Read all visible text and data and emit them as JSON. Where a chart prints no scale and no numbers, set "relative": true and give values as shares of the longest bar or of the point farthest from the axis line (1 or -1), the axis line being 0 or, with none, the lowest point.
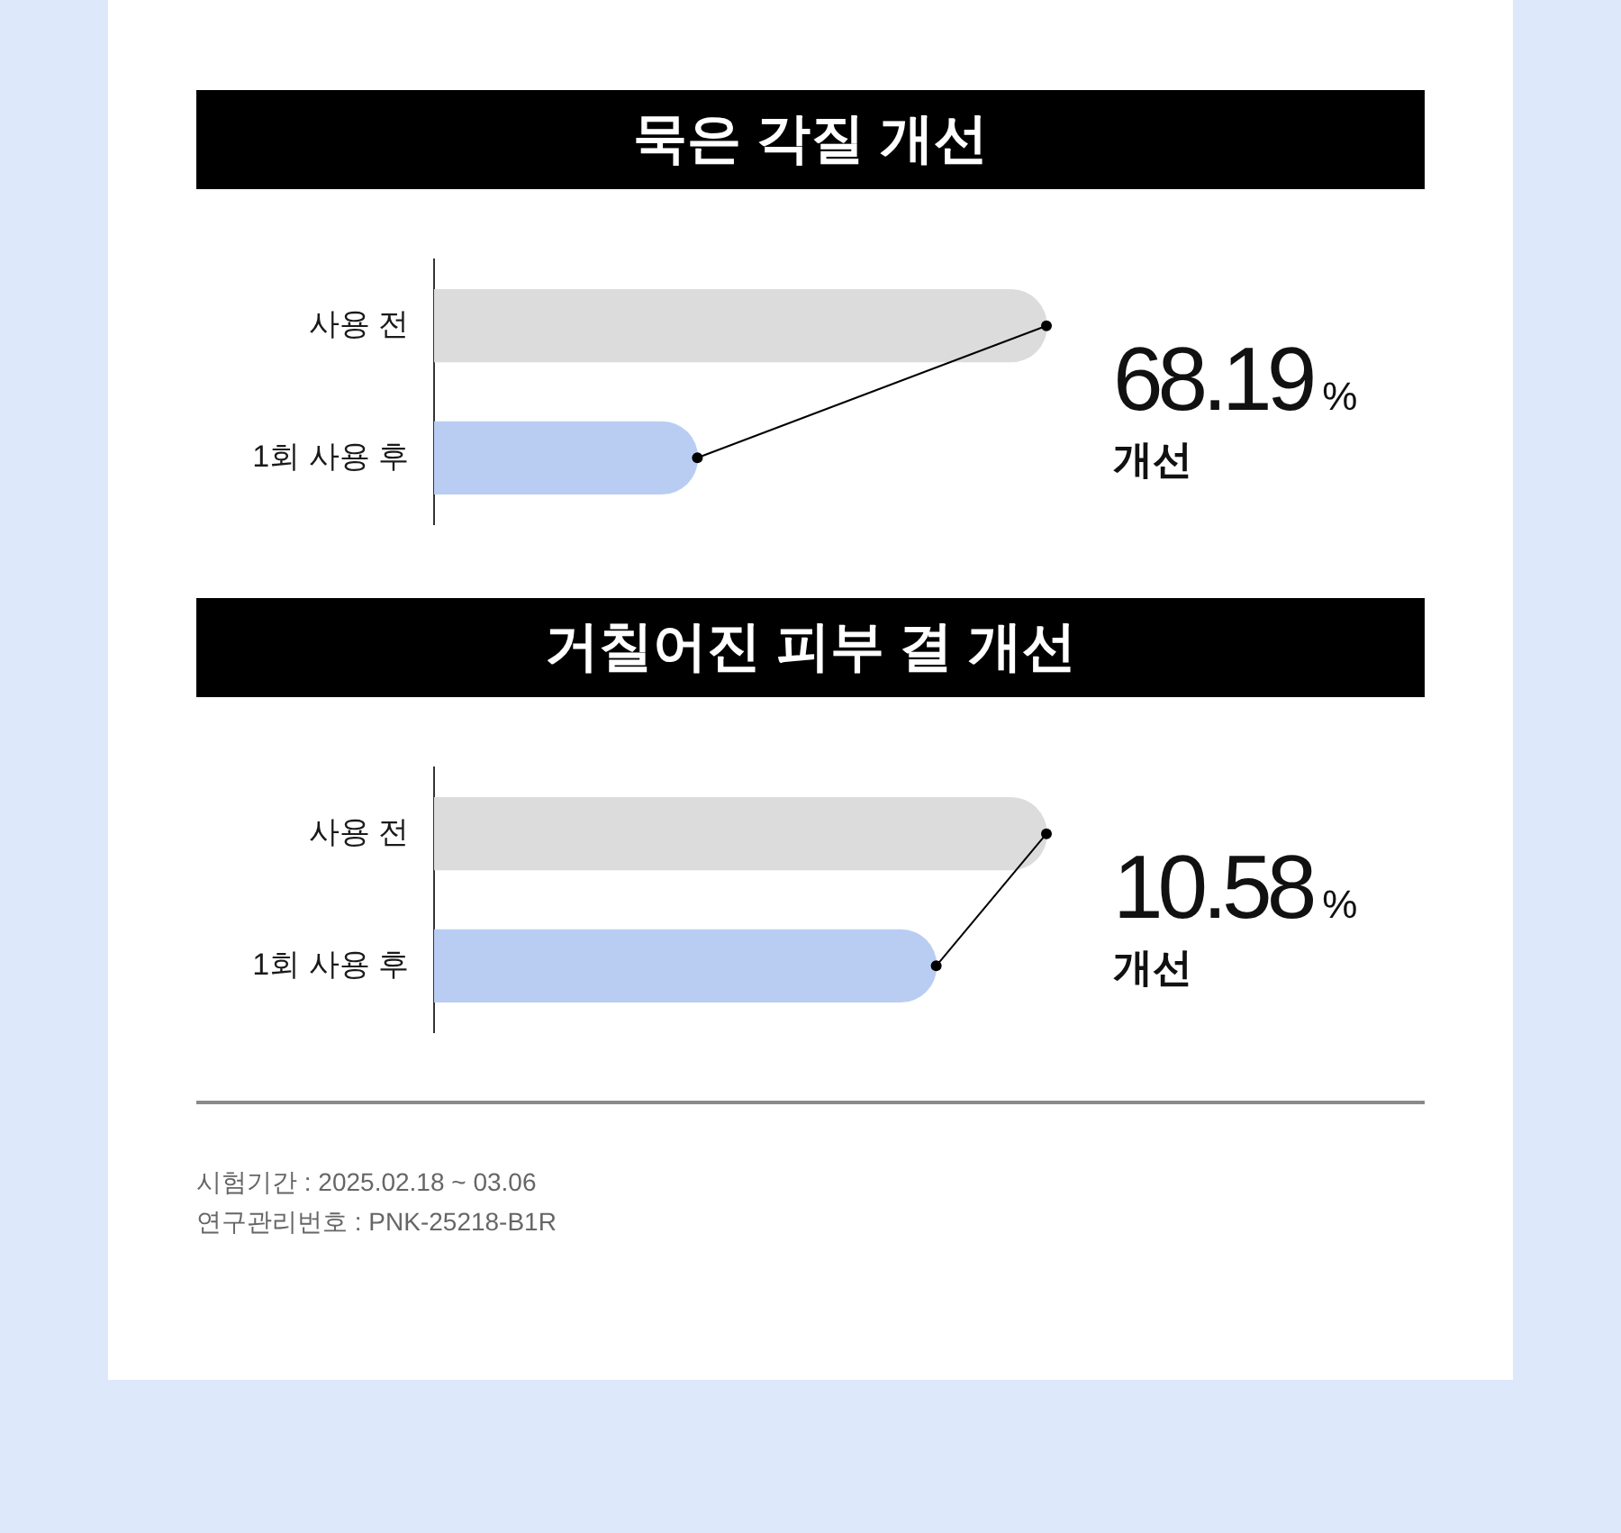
{
  "chart_data": [
    {
      "type": "bar",
      "orientation": "horizontal",
      "relative": true,
      "title": "묵은 각질 개선",
      "categories": [
        "사용 전",
        "1회 사용 후"
      ],
      "marker": "circle",
      "series": [
        {
          "colors": [
            "#dcdcdc",
            "#b9cdf3"
          ],
          "values": [
            1,
            0.43
          ]
        },
        {
          "type": "line",
          "color": "#000000",
          "values": [
            1,
            0.43
          ]
        }
      ],
      "annotations": [
        "68.19%",
        "개선"
      ]
    },
    {
      "type": "bar",
      "orientation": "horizontal",
      "relative": true,
      "title": "거칠어진 피부 결 개선",
      "categories": [
        "사용 전",
        "1회 사용 후"
      ],
      "marker": "circle",
      "series": [
        {
          "colors": [
            "#dcdcdc",
            "#b9cdf3"
          ],
          "values": [
            1,
            0.82
          ]
        },
        {
          "type": "line",
          "color": "#000000",
          "values": [
            1,
            0.82
          ]
        }
      ],
      "annotations": [
        "10.58%",
        "개선",
        "시험기간 : 2025.02.18 ~ 03.06",
        "연구관리번호 : PNK-25218-B1R"
      ]
    }
  ]
}
